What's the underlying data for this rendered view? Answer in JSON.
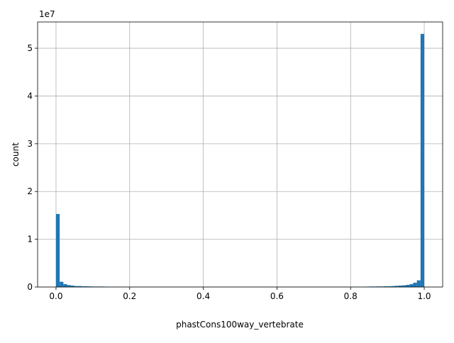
{
  "chart_data": {
    "type": "histogram",
    "xlabel": "phastCons100way_vertebrate",
    "ylabel": "count",
    "y_offset_label": "1e7",
    "color": "#1f77b4",
    "grid": true,
    "bins": [
      0,
      0.01,
      0.02,
      0.03,
      0.04,
      0.05,
      0.06,
      0.07,
      0.08,
      0.09,
      0.1,
      0.11,
      0.12,
      0.13,
      0.14,
      0.15,
      0.16,
      0.17,
      0.18,
      0.19,
      0.2,
      0.21,
      0.22,
      0.23,
      0.24,
      0.25,
      0.26,
      0.27,
      0.28,
      0.29,
      0.3,
      0.31,
      0.32,
      0.33,
      0.34,
      0.35,
      0.36,
      0.37,
      0.38,
      0.39,
      0.4,
      0.41,
      0.42,
      0.43,
      0.44,
      0.45,
      0.46,
      0.47,
      0.48,
      0.49,
      0.5,
      0.51,
      0.52,
      0.53,
      0.54,
      0.55,
      0.56,
      0.57,
      0.58,
      0.59,
      0.6,
      0.61,
      0.62,
      0.63,
      0.64,
      0.65,
      0.66,
      0.67,
      0.68,
      0.69,
      0.7,
      0.71,
      0.72,
      0.73,
      0.74,
      0.75,
      0.76,
      0.77,
      0.78,
      0.79,
      0.8,
      0.81,
      0.82,
      0.83,
      0.84,
      0.85,
      0.86,
      0.87,
      0.88,
      0.89,
      0.9,
      0.91,
      0.92,
      0.93,
      0.94,
      0.95,
      0.96,
      0.97,
      0.98,
      0.99,
      1
    ],
    "counts": [
      1.53,
      0.11,
      0.06,
      0.04,
      0.03,
      0.02,
      0.02,
      0.015,
      0.015,
      0.012,
      0.01,
      0.01,
      0.01,
      0.008,
      0.005,
      0.005,
      0.005,
      0.005,
      0.005,
      0.005,
      0.005,
      0.005,
      0.005,
      0.005,
      0.005,
      0.005,
      0.005,
      0.005,
      0.005,
      0.005,
      0.005,
      0.005,
      0.005,
      0.005,
      0.005,
      0.005,
      0.005,
      0.005,
      0.005,
      0.005,
      0.005,
      0.005,
      0.005,
      0.005,
      0.005,
      0.005,
      0.005,
      0.005,
      0.005,
      0.005,
      0.005,
      0.005,
      0.005,
      0.005,
      0.005,
      0.005,
      0.005,
      0.005,
      0.005,
      0.005,
      0.005,
      0.005,
      0.005,
      0.005,
      0.005,
      0.005,
      0.005,
      0.005,
      0.005,
      0.005,
      0.005,
      0.005,
      0.005,
      0.005,
      0.005,
      0.005,
      0.005,
      0.005,
      0.005,
      0.005,
      0.005,
      0.005,
      0.005,
      0.005,
      0.008,
      0.01,
      0.01,
      0.012,
      0.012,
      0.015,
      0.015,
      0.02,
      0.025,
      0.03,
      0.035,
      0.045,
      0.06,
      0.09,
      0.14,
      5.3
    ],
    "xlim": [
      -0.05,
      1.05
    ],
    "ylim": [
      0,
      5.55
    ],
    "xticks": [
      {
        "value": 0,
        "label": "0.0"
      },
      0.2,
      0.4,
      0.6,
      0.8,
      {
        "value": 1,
        "label": "1.0"
      }
    ],
    "yticks": [
      0,
      1,
      2,
      3,
      4,
      5
    ]
  }
}
